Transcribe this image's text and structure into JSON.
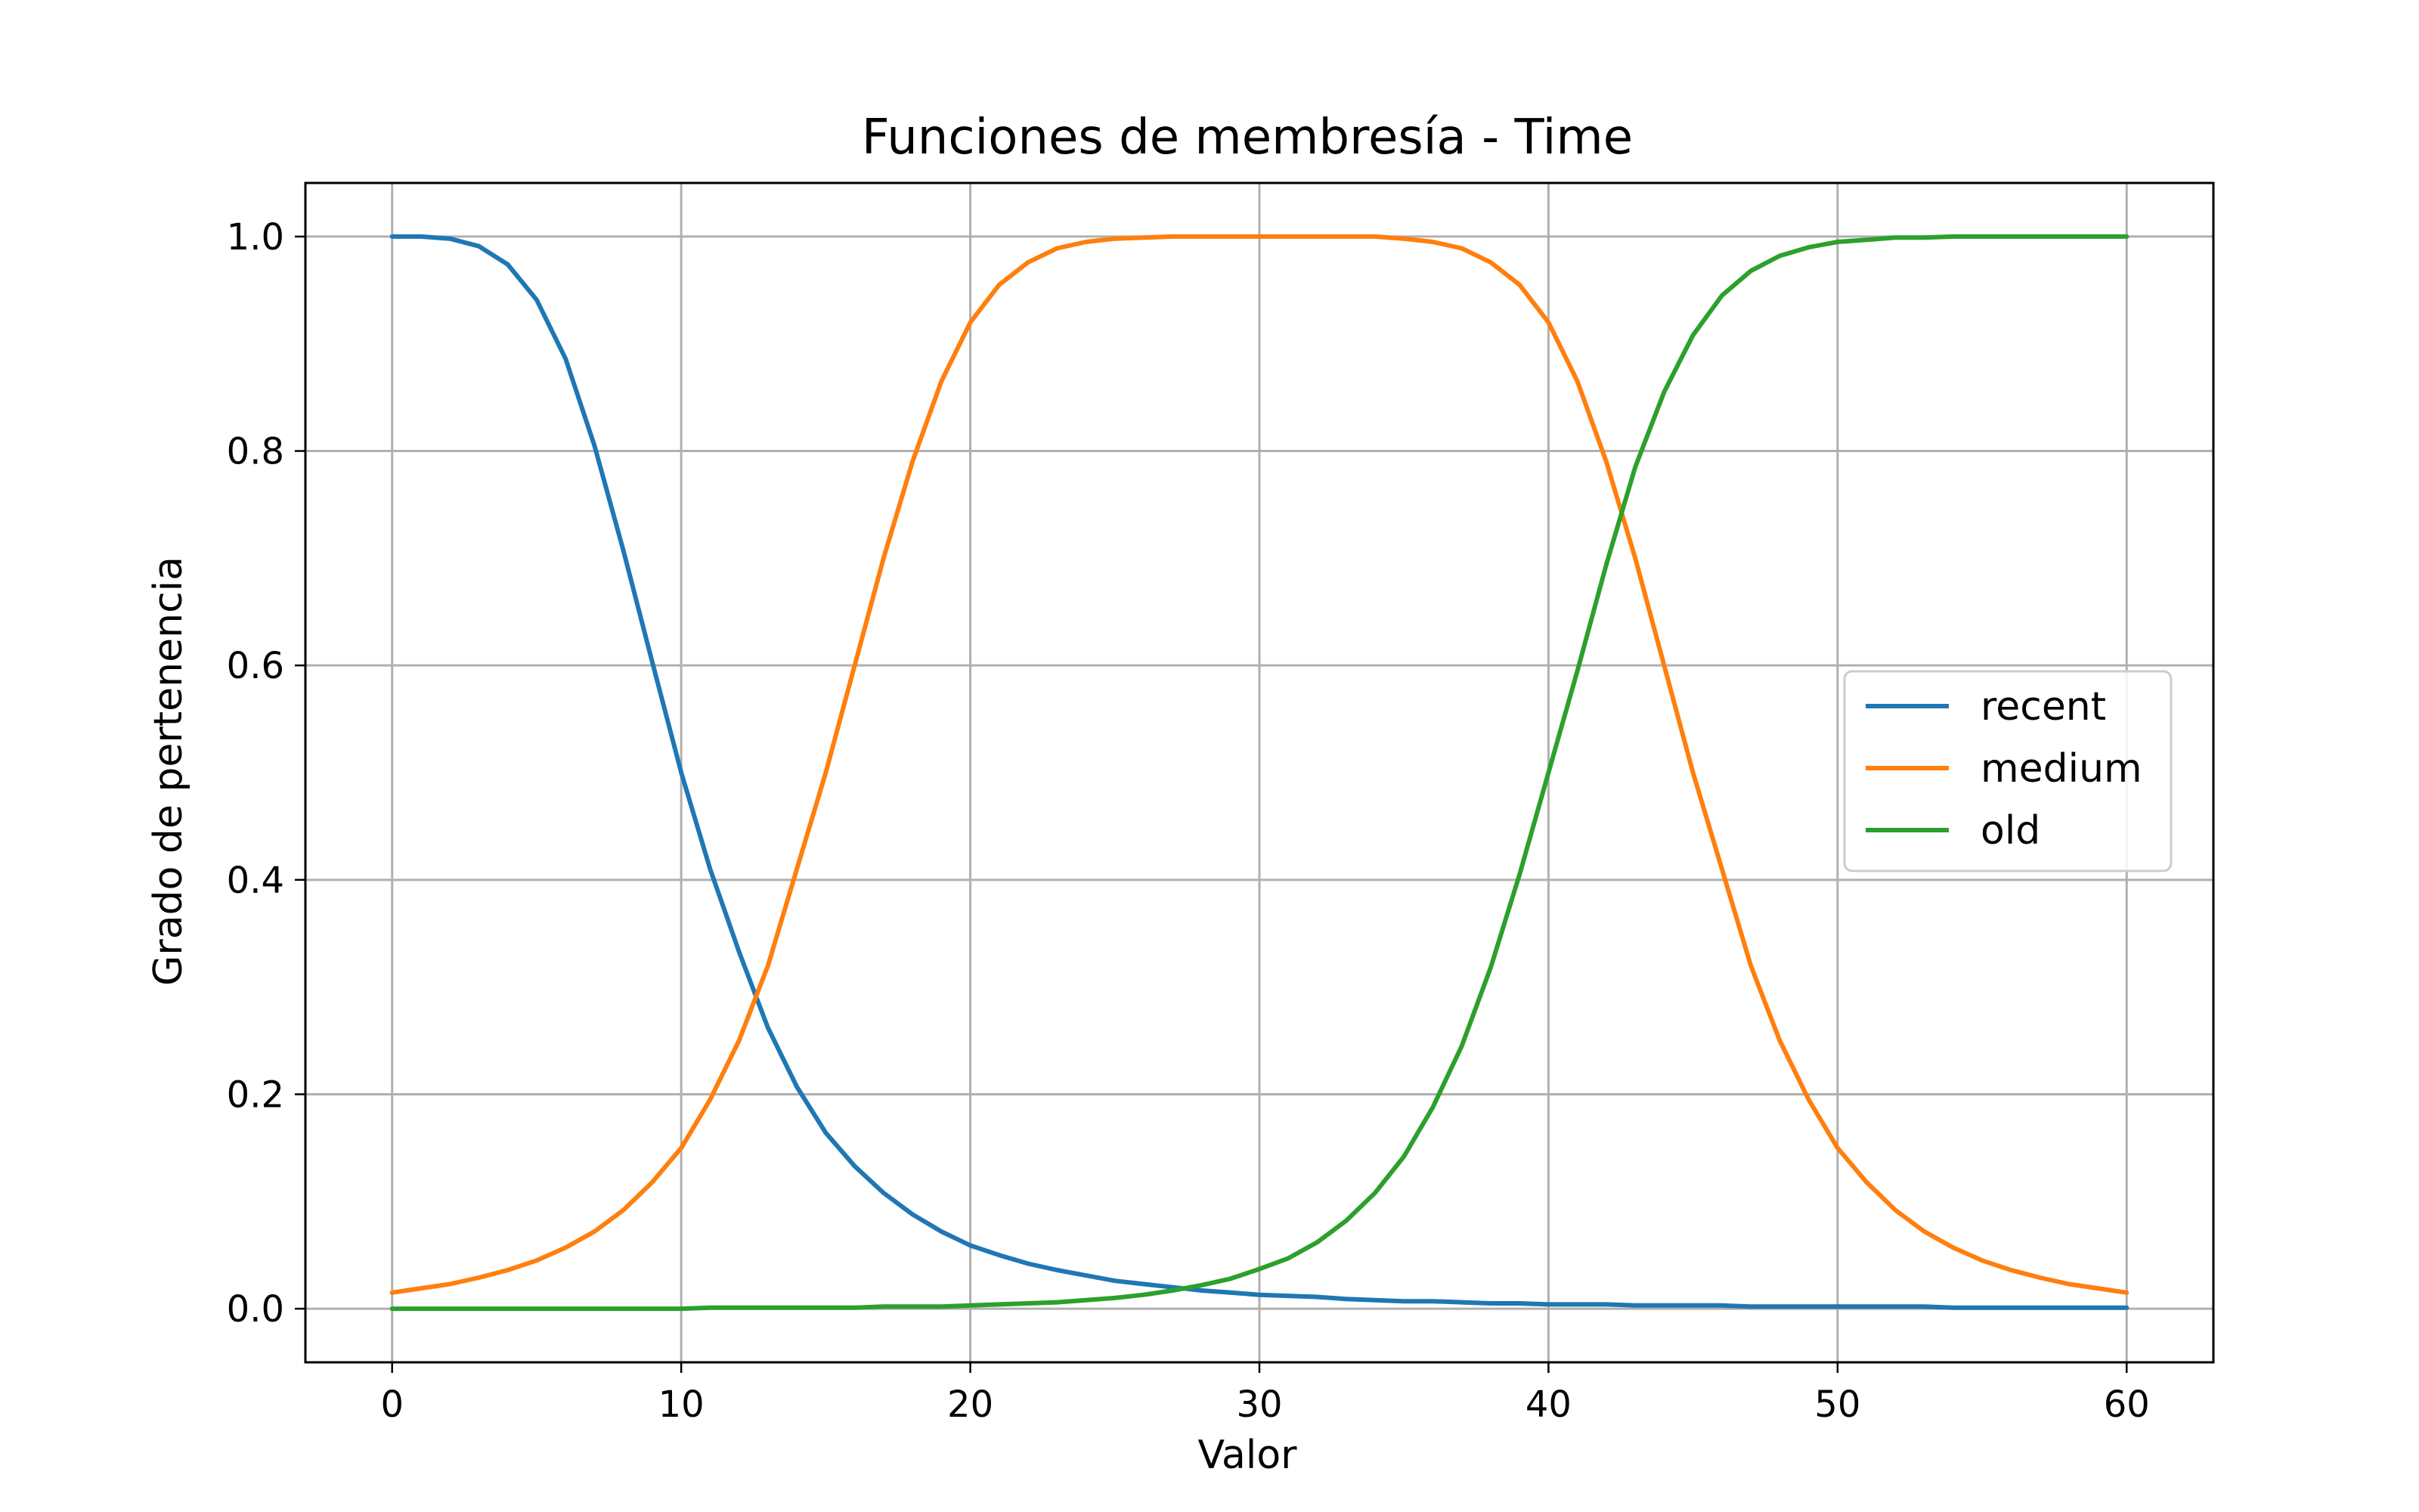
{
  "chart_data": {
    "type": "line",
    "title": "Funciones de membresía - Time",
    "xlabel": "Valor",
    "ylabel": "Grado de pertenencia",
    "xlim": [
      -3,
      63
    ],
    "ylim": [
      -0.05,
      1.05
    ],
    "xticks": [
      0,
      10,
      20,
      30,
      40,
      50,
      60
    ],
    "xtick_labels": [
      "0",
      "10",
      "20",
      "30",
      "40",
      "50",
      "60"
    ],
    "yticks": [
      0.0,
      0.2,
      0.4,
      0.6,
      0.8,
      1.0
    ],
    "ytick_labels": [
      "0.0",
      "0.2",
      "0.4",
      "0.6",
      "0.8",
      "1.0"
    ],
    "grid": true,
    "legend_position": "center-right",
    "x": [
      0,
      1,
      2,
      3,
      4,
      5,
      6,
      7,
      8,
      9,
      10,
      11,
      12,
      13,
      14,
      15,
      16,
      17,
      18,
      19,
      20,
      21,
      22,
      23,
      24,
      25,
      26,
      27,
      28,
      29,
      30,
      31,
      32,
      33,
      34,
      35,
      36,
      37,
      38,
      39,
      40,
      41,
      42,
      43,
      44,
      45,
      46,
      47,
      48,
      49,
      50,
      51,
      52,
      53,
      54,
      55,
      56,
      57,
      58,
      59,
      60
    ],
    "series": [
      {
        "name": "recent",
        "color": "#1f77b4",
        "values": [
          1.0,
          1.0,
          0.998,
          0.991,
          0.974,
          0.941,
          0.886,
          0.805,
          0.707,
          0.603,
          0.5,
          0.41,
          0.333,
          0.262,
          0.207,
          0.164,
          0.133,
          0.108,
          0.088,
          0.072,
          0.059,
          0.05,
          0.042,
          0.036,
          0.031,
          0.026,
          0.023,
          0.02,
          0.017,
          0.015,
          0.013,
          0.012,
          0.011,
          0.009,
          0.008,
          0.007,
          0.007,
          0.006,
          0.005,
          0.005,
          0.004,
          0.004,
          0.004,
          0.003,
          0.003,
          0.003,
          0.003,
          0.002,
          0.002,
          0.002,
          0.002,
          0.002,
          0.002,
          0.002,
          0.001,
          0.001,
          0.001,
          0.001,
          0.001,
          0.001,
          0.001
        ]
      },
      {
        "name": "medium",
        "color": "#ff7f0e",
        "values": [
          0.015,
          0.019,
          0.023,
          0.029,
          0.036,
          0.045,
          0.057,
          0.072,
          0.092,
          0.118,
          0.15,
          0.195,
          0.25,
          0.32,
          0.41,
          0.5,
          0.6,
          0.7,
          0.79,
          0.865,
          0.92,
          0.955,
          0.976,
          0.989,
          0.995,
          0.998,
          0.999,
          1.0,
          1.0,
          1.0,
          1.0,
          1.0,
          1.0,
          1.0,
          1.0,
          0.998,
          0.995,
          0.989,
          0.976,
          0.955,
          0.92,
          0.865,
          0.79,
          0.7,
          0.6,
          0.5,
          0.41,
          0.32,
          0.25,
          0.195,
          0.15,
          0.118,
          0.092,
          0.072,
          0.057,
          0.045,
          0.036,
          0.029,
          0.023,
          0.019,
          0.015
        ]
      },
      {
        "name": "old",
        "color": "#2ca02c",
        "values": [
          0.0,
          0.0,
          0.0,
          0.0,
          0.0,
          0.0,
          0.0,
          0.0,
          0.0,
          0.0,
          0.0,
          0.001,
          0.001,
          0.001,
          0.001,
          0.001,
          0.001,
          0.002,
          0.002,
          0.002,
          0.003,
          0.004,
          0.005,
          0.006,
          0.008,
          0.01,
          0.013,
          0.017,
          0.022,
          0.028,
          0.037,
          0.047,
          0.062,
          0.082,
          0.108,
          0.142,
          0.188,
          0.245,
          0.318,
          0.405,
          0.5,
          0.595,
          0.694,
          0.785,
          0.855,
          0.908,
          0.945,
          0.968,
          0.982,
          0.99,
          0.995,
          0.997,
          0.999,
          0.999,
          1.0,
          1.0,
          1.0,
          1.0,
          1.0,
          1.0,
          1.0
        ]
      }
    ]
  }
}
